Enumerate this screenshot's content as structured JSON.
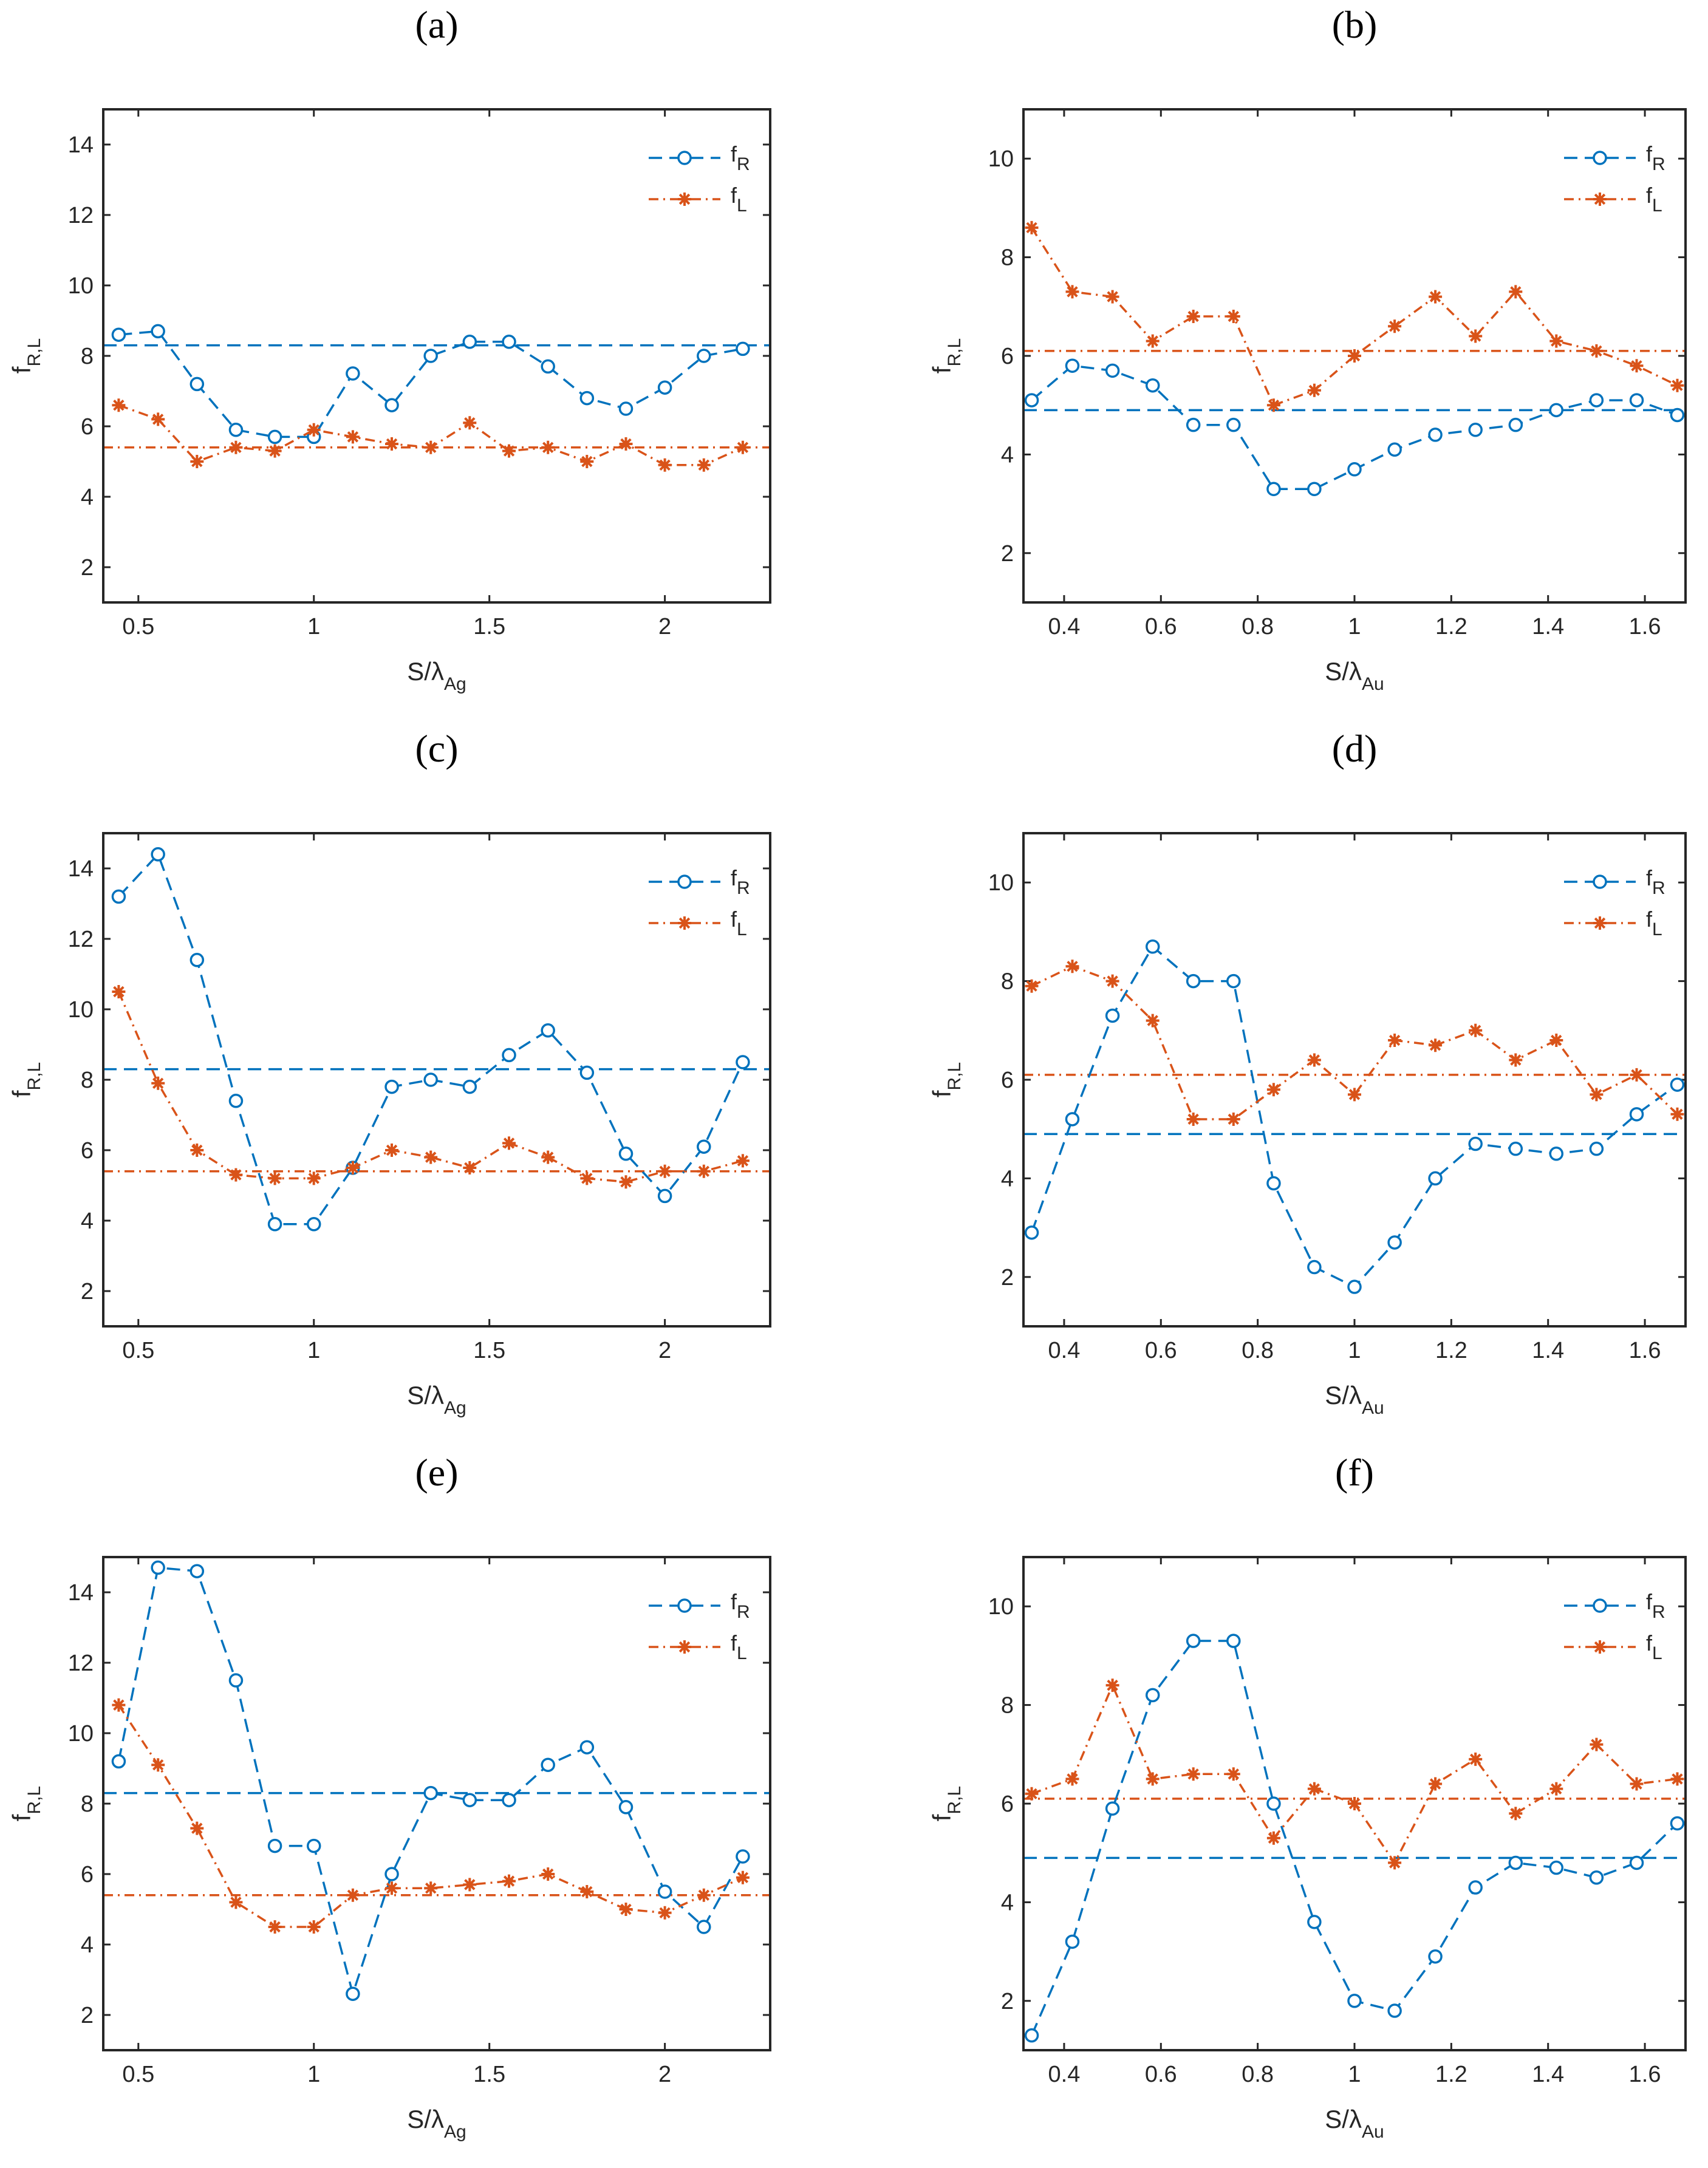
{
  "figure": {
    "y_label_main": "f",
    "y_label_sub": "R,L",
    "x_label_main": "S/λ",
    "legend_main": "f"
  },
  "colors": {
    "fR": "#0072BD",
    "fL": "#D95319",
    "axis": "#262626"
  },
  "chart_data": [
    {
      "panel_label": "(a)",
      "type": "line",
      "xlabel_sub": "Ag",
      "xlim": [
        0.4,
        2.3
      ],
      "ylim": [
        1,
        15
      ],
      "xticks": [
        0.5,
        1,
        1.5,
        2
      ],
      "xtick_labels": [
        "0.5",
        "1",
        "1.5",
        "2"
      ],
      "yticks": [
        2,
        4,
        6,
        8,
        10,
        12,
        14
      ],
      "ytick_labels": [
        "2",
        "4",
        "6",
        "8",
        "10",
        "12",
        "14"
      ],
      "x": [
        0.444,
        0.556,
        0.667,
        0.778,
        0.889,
        1.0,
        1.111,
        1.222,
        1.333,
        1.444,
        1.556,
        1.667,
        1.778,
        1.889,
        2.0,
        2.111,
        2.222
      ],
      "series": [
        {
          "name": "R",
          "style": "dashed-circle",
          "values": [
            8.6,
            8.7,
            7.2,
            5.9,
            5.7,
            5.7,
            7.5,
            6.6,
            8.0,
            8.4,
            8.4,
            7.7,
            6.8,
            6.5,
            7.1,
            8.0,
            8.2
          ]
        },
        {
          "name": "L",
          "style": "dashdot-star",
          "values": [
            6.6,
            6.2,
            5.0,
            5.4,
            5.3,
            5.9,
            5.7,
            5.5,
            5.4,
            6.1,
            5.3,
            5.4,
            5.0,
            5.5,
            4.9,
            4.9,
            5.4
          ]
        }
      ],
      "reference_lines": [
        {
          "series": "R",
          "y": 8.3
        },
        {
          "series": "L",
          "y": 5.4
        }
      ],
      "legend": {
        "position": "top-right",
        "entries": [
          "R",
          "L"
        ]
      }
    },
    {
      "panel_label": "(b)",
      "type": "line",
      "xlabel_sub": "Au",
      "xlim": [
        0.316,
        1.684
      ],
      "ylim": [
        1,
        11
      ],
      "xticks": [
        0.4,
        0.6,
        0.8,
        1.0,
        1.2,
        1.4,
        1.6
      ],
      "xtick_labels": [
        "0.4",
        "0.6",
        "0.8",
        "1",
        "1.2",
        "1.4",
        "1.6"
      ],
      "yticks": [
        2,
        4,
        6,
        8,
        10
      ],
      "ytick_labels": [
        "2",
        "4",
        "6",
        "8",
        "10"
      ],
      "x": [
        0.333,
        0.417,
        0.5,
        0.583,
        0.667,
        0.75,
        0.833,
        0.917,
        1.0,
        1.083,
        1.167,
        1.25,
        1.333,
        1.417,
        1.5,
        1.583,
        1.667
      ],
      "series": [
        {
          "name": "R",
          "style": "dashed-circle",
          "values": [
            5.1,
            5.8,
            5.7,
            5.4,
            4.6,
            4.6,
            3.3,
            3.3,
            3.7,
            4.1,
            4.4,
            4.5,
            4.6,
            4.9,
            5.1,
            5.1,
            4.8
          ]
        },
        {
          "name": "L",
          "style": "dashdot-star",
          "values": [
            8.6,
            7.3,
            7.2,
            6.3,
            6.8,
            6.8,
            5.0,
            5.3,
            6.0,
            6.6,
            7.2,
            6.4,
            7.3,
            6.3,
            6.1,
            5.8,
            5.4
          ]
        }
      ],
      "reference_lines": [
        {
          "series": "R",
          "y": 4.9
        },
        {
          "series": "L",
          "y": 6.1
        }
      ],
      "legend": {
        "position": "top-right",
        "entries": [
          "R",
          "L"
        ]
      }
    },
    {
      "panel_label": "(c)",
      "type": "line",
      "xlabel_sub": "Ag",
      "xlim": [
        0.4,
        2.3
      ],
      "ylim": [
        1,
        15
      ],
      "xticks": [
        0.5,
        1,
        1.5,
        2
      ],
      "xtick_labels": [
        "0.5",
        "1",
        "1.5",
        "2"
      ],
      "yticks": [
        2,
        4,
        6,
        8,
        10,
        12,
        14
      ],
      "ytick_labels": [
        "2",
        "4",
        "6",
        "8",
        "10",
        "12",
        "14"
      ],
      "x": [
        0.444,
        0.556,
        0.667,
        0.778,
        0.889,
        1.0,
        1.111,
        1.222,
        1.333,
        1.444,
        1.556,
        1.667,
        1.778,
        1.889,
        2.0,
        2.111,
        2.222
      ],
      "series": [
        {
          "name": "R",
          "style": "dashed-circle",
          "values": [
            13.2,
            14.4,
            11.4,
            7.4,
            3.9,
            3.9,
            5.5,
            7.8,
            8.0,
            7.8,
            8.7,
            9.4,
            8.2,
            5.9,
            4.7,
            6.1,
            8.5
          ]
        },
        {
          "name": "L",
          "style": "dashdot-star",
          "values": [
            10.5,
            7.9,
            6.0,
            5.3,
            5.2,
            5.2,
            5.5,
            6.0,
            5.8,
            5.5,
            6.2,
            5.8,
            5.2,
            5.1,
            5.4,
            5.4,
            5.7
          ]
        }
      ],
      "reference_lines": [
        {
          "series": "R",
          "y": 8.3
        },
        {
          "series": "L",
          "y": 5.4
        }
      ],
      "legend": {
        "position": "top-right",
        "entries": [
          "R",
          "L"
        ]
      }
    },
    {
      "panel_label": "(d)",
      "type": "line",
      "xlabel_sub": "Au",
      "xlim": [
        0.316,
        1.684
      ],
      "ylim": [
        1,
        11
      ],
      "xticks": [
        0.4,
        0.6,
        0.8,
        1.0,
        1.2,
        1.4,
        1.6
      ],
      "xtick_labels": [
        "0.4",
        "0.6",
        "0.8",
        "1",
        "1.2",
        "1.4",
        "1.6"
      ],
      "yticks": [
        2,
        4,
        6,
        8,
        10
      ],
      "ytick_labels": [
        "2",
        "4",
        "6",
        "8",
        "10"
      ],
      "x": [
        0.333,
        0.417,
        0.5,
        0.583,
        0.667,
        0.75,
        0.833,
        0.917,
        1.0,
        1.083,
        1.167,
        1.25,
        1.333,
        1.417,
        1.5,
        1.583,
        1.667
      ],
      "series": [
        {
          "name": "R",
          "style": "dashed-circle",
          "values": [
            2.9,
            5.2,
            7.3,
            8.7,
            8.0,
            8.0,
            3.9,
            2.2,
            1.8,
            2.7,
            4.0,
            4.7,
            4.6,
            4.5,
            4.6,
            5.3,
            5.9
          ]
        },
        {
          "name": "L",
          "style": "dashdot-star",
          "values": [
            7.9,
            8.3,
            8.0,
            7.2,
            5.2,
            5.2,
            5.8,
            6.4,
            5.7,
            6.8,
            6.7,
            7.0,
            6.4,
            6.8,
            5.7,
            6.1,
            5.3
          ]
        }
      ],
      "reference_lines": [
        {
          "series": "R",
          "y": 4.9
        },
        {
          "series": "L",
          "y": 6.1
        }
      ],
      "legend": {
        "position": "top-right",
        "entries": [
          "R",
          "L"
        ]
      }
    },
    {
      "panel_label": "(e)",
      "type": "line",
      "xlabel_sub": "Ag",
      "xlim": [
        0.4,
        2.3
      ],
      "ylim": [
        1,
        15
      ],
      "xticks": [
        0.5,
        1,
        1.5,
        2
      ],
      "xtick_labels": [
        "0.5",
        "1",
        "1.5",
        "2"
      ],
      "yticks": [
        2,
        4,
        6,
        8,
        10,
        12,
        14
      ],
      "ytick_labels": [
        "2",
        "4",
        "6",
        "8",
        "10",
        "12",
        "14"
      ],
      "x": [
        0.444,
        0.556,
        0.667,
        0.778,
        0.889,
        1.0,
        1.111,
        1.222,
        1.333,
        1.444,
        1.556,
        1.667,
        1.778,
        1.889,
        2.0,
        2.111,
        2.222
      ],
      "series": [
        {
          "name": "R",
          "style": "dashed-circle",
          "values": [
            9.2,
            14.7,
            14.6,
            11.5,
            6.8,
            6.8,
            2.6,
            6.0,
            8.3,
            8.1,
            8.1,
            9.1,
            9.6,
            7.9,
            5.5,
            4.5,
            6.5
          ]
        },
        {
          "name": "L",
          "style": "dashdot-star",
          "values": [
            10.8,
            9.1,
            7.3,
            5.2,
            4.5,
            4.5,
            5.4,
            5.6,
            5.6,
            5.7,
            5.8,
            6.0,
            5.5,
            5.0,
            4.9,
            5.4,
            5.9
          ]
        }
      ],
      "reference_lines": [
        {
          "series": "R",
          "y": 8.3
        },
        {
          "series": "L",
          "y": 5.4
        }
      ],
      "legend": {
        "position": "top-right",
        "entries": [
          "R",
          "L"
        ]
      }
    },
    {
      "panel_label": "(f)",
      "type": "line",
      "xlabel_sub": "Au",
      "xlim": [
        0.316,
        1.684
      ],
      "ylim": [
        1,
        11
      ],
      "xticks": [
        0.4,
        0.6,
        0.8,
        1.0,
        1.2,
        1.4,
        1.6
      ],
      "xtick_labels": [
        "0.4",
        "0.6",
        "0.8",
        "1",
        "1.2",
        "1.4",
        "1.6"
      ],
      "yticks": [
        2,
        4,
        6,
        8,
        10
      ],
      "ytick_labels": [
        "2",
        "4",
        "6",
        "8",
        "10"
      ],
      "x": [
        0.333,
        0.417,
        0.5,
        0.583,
        0.667,
        0.75,
        0.833,
        0.917,
        1.0,
        1.083,
        1.167,
        1.25,
        1.333,
        1.417,
        1.5,
        1.583,
        1.667
      ],
      "series": [
        {
          "name": "R",
          "style": "dashed-circle",
          "values": [
            1.3,
            3.2,
            5.9,
            8.2,
            9.3,
            9.3,
            6.0,
            3.6,
            2.0,
            1.8,
            2.9,
            4.3,
            4.8,
            4.7,
            4.5,
            4.8,
            5.6
          ]
        },
        {
          "name": "L",
          "style": "dashdot-star",
          "values": [
            6.2,
            6.5,
            8.4,
            6.5,
            6.6,
            6.6,
            5.3,
            6.3,
            6.0,
            4.8,
            6.4,
            6.9,
            5.8,
            6.3,
            7.2,
            6.4,
            6.5
          ]
        }
      ],
      "reference_lines": [
        {
          "series": "R",
          "y": 4.9
        },
        {
          "series": "L",
          "y": 6.1
        }
      ],
      "legend": {
        "position": "top-right",
        "entries": [
          "R",
          "L"
        ]
      }
    }
  ]
}
